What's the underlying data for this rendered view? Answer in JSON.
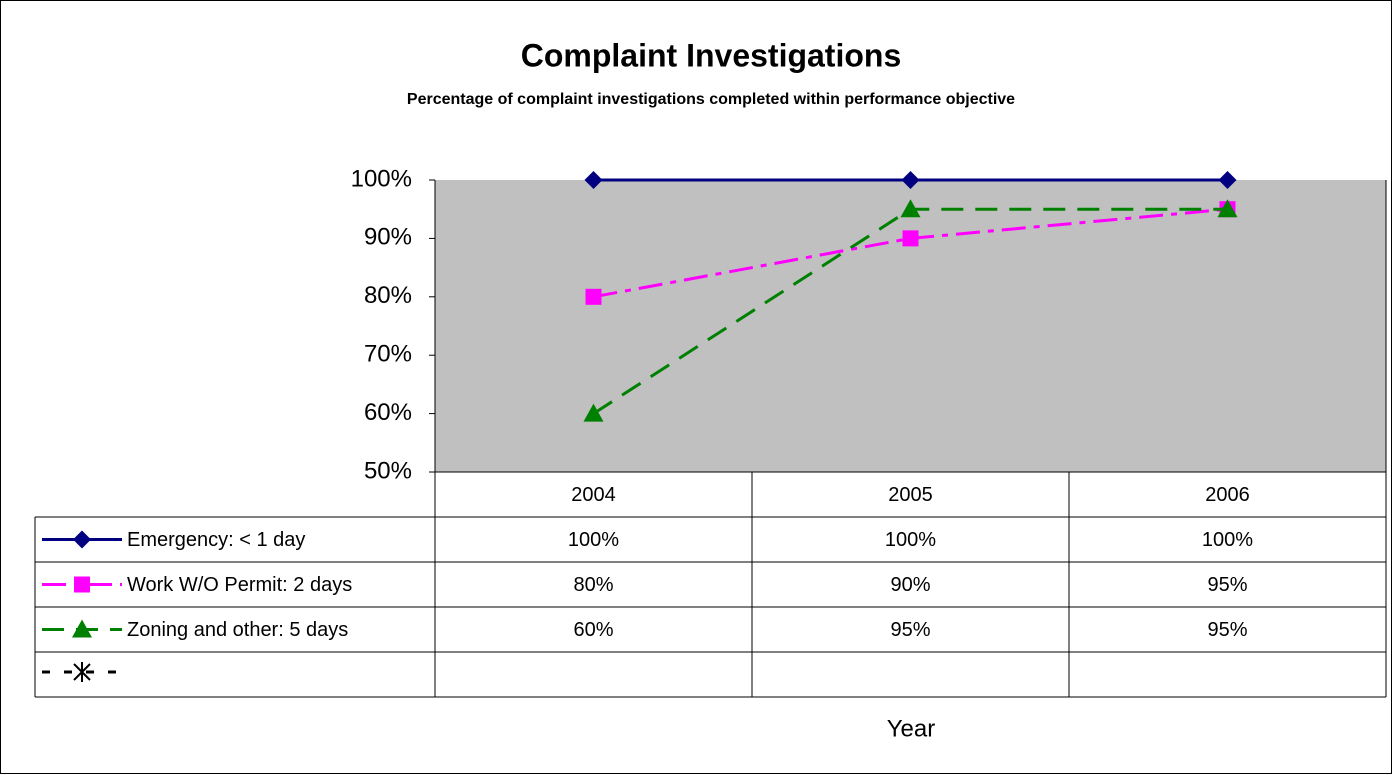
{
  "chart_data": {
    "type": "line",
    "title": "Complaint Investigations",
    "subtitle": "Percentage of complaint investigations completed within performance objective",
    "x_label": "Year",
    "categories": [
      "2004",
      "2005",
      "2006"
    ],
    "series": [
      {
        "name": "Emergency: < 1 day",
        "color": "#000080",
        "dash": "solid",
        "marker": "diamond",
        "values": [
          100,
          100,
          100
        ],
        "value_labels": [
          "100%",
          "100%",
          "100%"
        ]
      },
      {
        "name": "Work W/O Permit: 2 days",
        "color": "#ff00ff",
        "dash": "dashdot",
        "marker": "square",
        "values": [
          80,
          90,
          95
        ],
        "value_labels": [
          "80%",
          "90%",
          "95%"
        ]
      },
      {
        "name": "Zoning and other: 5 days",
        "color": "#008000",
        "dash": "dash",
        "marker": "triangle",
        "values": [
          60,
          95,
          95
        ],
        "value_labels": [
          "60%",
          "95%",
          "95%"
        ]
      }
    ],
    "ylim": [
      50,
      100
    ],
    "yticks": [
      {
        "value": 50,
        "label": "50%"
      },
      {
        "value": 60,
        "label": "60%"
      },
      {
        "value": 70,
        "label": "70%"
      },
      {
        "value": 80,
        "label": "80%"
      },
      {
        "value": 90,
        "label": "90%"
      },
      {
        "value": 100,
        "label": "100%"
      }
    ],
    "plot_background": "#c0c0c0"
  }
}
